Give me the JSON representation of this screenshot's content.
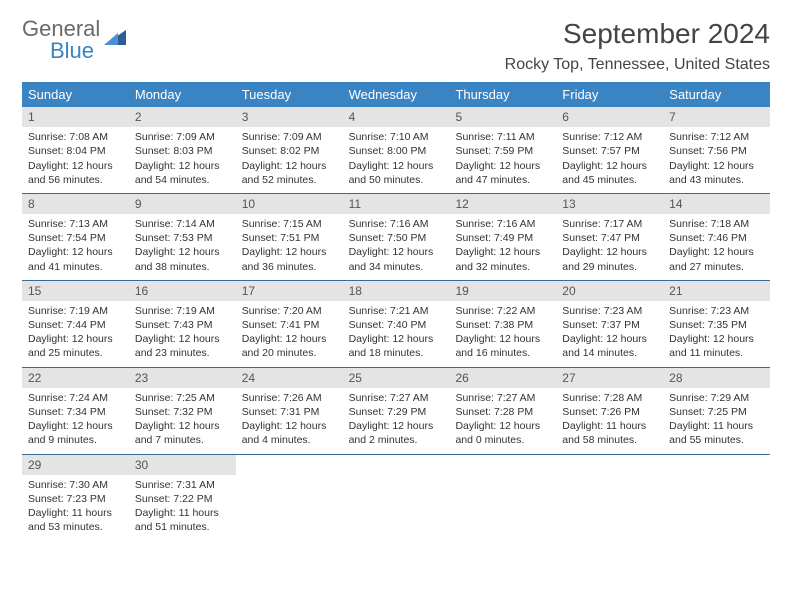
{
  "brand": {
    "part1": "General",
    "part2": "Blue"
  },
  "title": "September 2024",
  "location": "Rocky Top, Tennessee, United States",
  "colors": {
    "header_bg": "#3a84c4",
    "header_text": "#ffffff",
    "daynum_bg": "#e4e4e4",
    "row_border": "#3a6a9a",
    "text": "#333333"
  },
  "day_names": [
    "Sunday",
    "Monday",
    "Tuesday",
    "Wednesday",
    "Thursday",
    "Friday",
    "Saturday"
  ],
  "weeks": [
    [
      {
        "n": "1",
        "sunrise": "Sunrise: 7:08 AM",
        "sunset": "Sunset: 8:04 PM",
        "daylight": "Daylight: 12 hours and 56 minutes."
      },
      {
        "n": "2",
        "sunrise": "Sunrise: 7:09 AM",
        "sunset": "Sunset: 8:03 PM",
        "daylight": "Daylight: 12 hours and 54 minutes."
      },
      {
        "n": "3",
        "sunrise": "Sunrise: 7:09 AM",
        "sunset": "Sunset: 8:02 PM",
        "daylight": "Daylight: 12 hours and 52 minutes."
      },
      {
        "n": "4",
        "sunrise": "Sunrise: 7:10 AM",
        "sunset": "Sunset: 8:00 PM",
        "daylight": "Daylight: 12 hours and 50 minutes."
      },
      {
        "n": "5",
        "sunrise": "Sunrise: 7:11 AM",
        "sunset": "Sunset: 7:59 PM",
        "daylight": "Daylight: 12 hours and 47 minutes."
      },
      {
        "n": "6",
        "sunrise": "Sunrise: 7:12 AM",
        "sunset": "Sunset: 7:57 PM",
        "daylight": "Daylight: 12 hours and 45 minutes."
      },
      {
        "n": "7",
        "sunrise": "Sunrise: 7:12 AM",
        "sunset": "Sunset: 7:56 PM",
        "daylight": "Daylight: 12 hours and 43 minutes."
      }
    ],
    [
      {
        "n": "8",
        "sunrise": "Sunrise: 7:13 AM",
        "sunset": "Sunset: 7:54 PM",
        "daylight": "Daylight: 12 hours and 41 minutes."
      },
      {
        "n": "9",
        "sunrise": "Sunrise: 7:14 AM",
        "sunset": "Sunset: 7:53 PM",
        "daylight": "Daylight: 12 hours and 38 minutes."
      },
      {
        "n": "10",
        "sunrise": "Sunrise: 7:15 AM",
        "sunset": "Sunset: 7:51 PM",
        "daylight": "Daylight: 12 hours and 36 minutes."
      },
      {
        "n": "11",
        "sunrise": "Sunrise: 7:16 AM",
        "sunset": "Sunset: 7:50 PM",
        "daylight": "Daylight: 12 hours and 34 minutes."
      },
      {
        "n": "12",
        "sunrise": "Sunrise: 7:16 AM",
        "sunset": "Sunset: 7:49 PM",
        "daylight": "Daylight: 12 hours and 32 minutes."
      },
      {
        "n": "13",
        "sunrise": "Sunrise: 7:17 AM",
        "sunset": "Sunset: 7:47 PM",
        "daylight": "Daylight: 12 hours and 29 minutes."
      },
      {
        "n": "14",
        "sunrise": "Sunrise: 7:18 AM",
        "sunset": "Sunset: 7:46 PM",
        "daylight": "Daylight: 12 hours and 27 minutes."
      }
    ],
    [
      {
        "n": "15",
        "sunrise": "Sunrise: 7:19 AM",
        "sunset": "Sunset: 7:44 PM",
        "daylight": "Daylight: 12 hours and 25 minutes."
      },
      {
        "n": "16",
        "sunrise": "Sunrise: 7:19 AM",
        "sunset": "Sunset: 7:43 PM",
        "daylight": "Daylight: 12 hours and 23 minutes."
      },
      {
        "n": "17",
        "sunrise": "Sunrise: 7:20 AM",
        "sunset": "Sunset: 7:41 PM",
        "daylight": "Daylight: 12 hours and 20 minutes."
      },
      {
        "n": "18",
        "sunrise": "Sunrise: 7:21 AM",
        "sunset": "Sunset: 7:40 PM",
        "daylight": "Daylight: 12 hours and 18 minutes."
      },
      {
        "n": "19",
        "sunrise": "Sunrise: 7:22 AM",
        "sunset": "Sunset: 7:38 PM",
        "daylight": "Daylight: 12 hours and 16 minutes."
      },
      {
        "n": "20",
        "sunrise": "Sunrise: 7:23 AM",
        "sunset": "Sunset: 7:37 PM",
        "daylight": "Daylight: 12 hours and 14 minutes."
      },
      {
        "n": "21",
        "sunrise": "Sunrise: 7:23 AM",
        "sunset": "Sunset: 7:35 PM",
        "daylight": "Daylight: 12 hours and 11 minutes."
      }
    ],
    [
      {
        "n": "22",
        "sunrise": "Sunrise: 7:24 AM",
        "sunset": "Sunset: 7:34 PM",
        "daylight": "Daylight: 12 hours and 9 minutes."
      },
      {
        "n": "23",
        "sunrise": "Sunrise: 7:25 AM",
        "sunset": "Sunset: 7:32 PM",
        "daylight": "Daylight: 12 hours and 7 minutes."
      },
      {
        "n": "24",
        "sunrise": "Sunrise: 7:26 AM",
        "sunset": "Sunset: 7:31 PM",
        "daylight": "Daylight: 12 hours and 4 minutes."
      },
      {
        "n": "25",
        "sunrise": "Sunrise: 7:27 AM",
        "sunset": "Sunset: 7:29 PM",
        "daylight": "Daylight: 12 hours and 2 minutes."
      },
      {
        "n": "26",
        "sunrise": "Sunrise: 7:27 AM",
        "sunset": "Sunset: 7:28 PM",
        "daylight": "Daylight: 12 hours and 0 minutes."
      },
      {
        "n": "27",
        "sunrise": "Sunrise: 7:28 AM",
        "sunset": "Sunset: 7:26 PM",
        "daylight": "Daylight: 11 hours and 58 minutes."
      },
      {
        "n": "28",
        "sunrise": "Sunrise: 7:29 AM",
        "sunset": "Sunset: 7:25 PM",
        "daylight": "Daylight: 11 hours and 55 minutes."
      }
    ],
    [
      {
        "n": "29",
        "sunrise": "Sunrise: 7:30 AM",
        "sunset": "Sunset: 7:23 PM",
        "daylight": "Daylight: 11 hours and 53 minutes."
      },
      {
        "n": "30",
        "sunrise": "Sunrise: 7:31 AM",
        "sunset": "Sunset: 7:22 PM",
        "daylight": "Daylight: 11 hours and 51 minutes."
      },
      null,
      null,
      null,
      null,
      null
    ]
  ]
}
